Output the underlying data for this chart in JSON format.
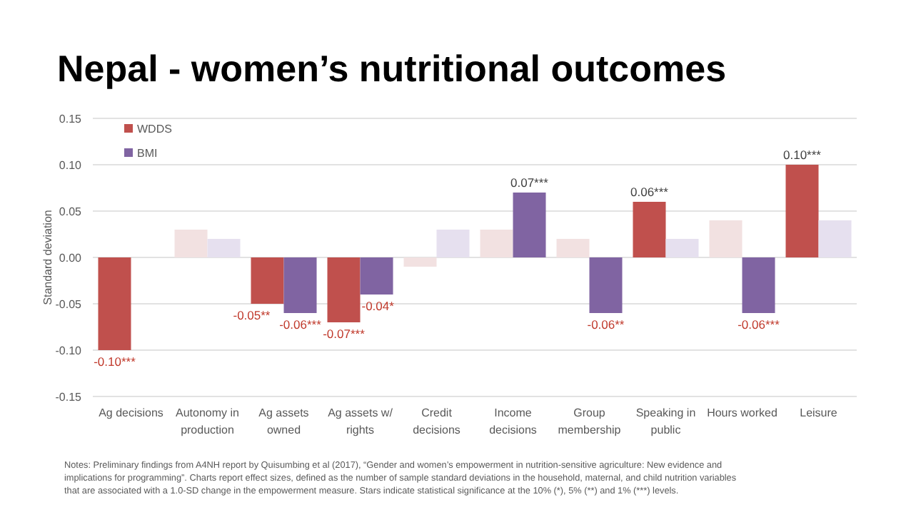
{
  "chart_data": {
    "type": "bar",
    "title": "Nepal - women’s nutritional outcomes",
    "ylabel": "Standard deviation",
    "categories": [
      "Ag decisions",
      "Autonomy in production",
      "Ag assets owned",
      "Ag assets w/ rights",
      "Credit decisions",
      "Income decisions",
      "Group membership",
      "Speaking in public",
      "Hours worked",
      "Leisure"
    ],
    "series": [
      {
        "name": "WDDS",
        "color": "#c0504d",
        "colors": [
          "#c0504d",
          "#f2e1e1",
          "#c0504d",
          "#c0504d",
          "#f2e1e1",
          "#f2e1e1",
          "#f2e1e1",
          "#c0504d",
          "#f2e1e1",
          "#c0504d"
        ],
        "values": [
          -0.1,
          0.03,
          -0.05,
          -0.07,
          -0.01,
          0.03,
          0.02,
          0.06,
          0.04,
          0.1
        ],
        "value_labels": [
          "-0.10***",
          null,
          "-0.05**",
          "-0.07***",
          null,
          null,
          null,
          "0.06***",
          null,
          "0.10***"
        ]
      },
      {
        "name": "BMI",
        "color": "#8064a2",
        "colors": [
          null,
          "#e6e0ef",
          "#8064a2",
          "#8064a2",
          "#e6e0ef",
          "#8064a2",
          "#8064a2",
          "#e6e0ef",
          "#8064a2",
          "#e6e0ef"
        ],
        "values": [
          null,
          0.02,
          -0.06,
          -0.04,
          0.03,
          0.07,
          -0.06,
          0.02,
          -0.06,
          0.04
        ],
        "value_labels": [
          null,
          null,
          "-0.06***",
          "-0.04*",
          null,
          "0.07***",
          "-0.06**",
          null,
          "-0.06***",
          null
        ]
      }
    ],
    "ylim": [
      -0.15,
      0.15
    ],
    "yticks": [
      {
        "value": -0.15,
        "label": "-0.15"
      },
      {
        "value": -0.1,
        "label": "-0.10"
      },
      {
        "value": -0.05,
        "label": "-0.05"
      },
      {
        "value": 0,
        "label": "0.00"
      },
      {
        "value": 0.05,
        "label": "0.05"
      },
      {
        "value": 0.1,
        "label": "0.10"
      },
      {
        "value": 0.15,
        "label": "0.15"
      }
    ],
    "grid": "y",
    "legend": "top left",
    "annotations": [
      "Notes: Preliminary findings from A4NH report by Quisumbing et al (2017), “Gender and women’s empowerment in nutrition-sensitive agriculture: New evidence and implications for programming”. Charts report effect sizes, defined as the number of sample standard deviations in the household, maternal, and child nutrition variables that are associated with a 1.0-SD change in the empowerment measure. Stars indicate statistical significance at the 10% (*), 5% (**) and 1% (***) levels."
    ]
  }
}
